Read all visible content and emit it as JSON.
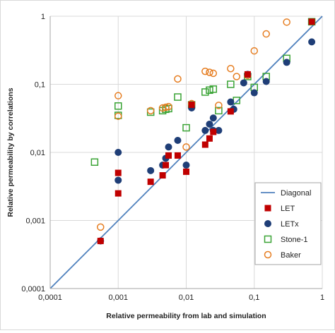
{
  "chart_data": {
    "type": "scatter",
    "title": "",
    "xlabel": "Relative permeability from lab and simulation",
    "ylabel": "Relative permeability by correlations",
    "xscale": "log",
    "yscale": "log",
    "xlim": [
      0.0001,
      1
    ],
    "ylim": [
      0.0001,
      1
    ],
    "x_tick_labels": [
      "0,0001",
      "0,001",
      "0,01",
      "0,1",
      "1"
    ],
    "y_tick_labels": [
      "0,0001",
      "0,001",
      "0,01",
      "0,1",
      "1"
    ],
    "grid": true,
    "legend_position": "bottom-right",
    "series": [
      {
        "name": "Diagonal",
        "marker": "line",
        "color": "#4f81bd",
        "points": [
          [
            0.0001,
            0.0001
          ],
          [
            1,
            1
          ]
        ]
      },
      {
        "name": "LET",
        "marker": "square-filled",
        "color": "#c00000",
        "points": [
          [
            0.00055,
            0.0005
          ],
          [
            0.001,
            0.005
          ],
          [
            0.001,
            0.0025
          ],
          [
            0.003,
            0.0037
          ],
          [
            0.0045,
            0.0046
          ],
          [
            0.005,
            0.0065
          ],
          [
            0.0055,
            0.009
          ],
          [
            0.0075,
            0.009
          ],
          [
            0.01,
            0.0052
          ],
          [
            0.012,
            0.05
          ],
          [
            0.019,
            0.013
          ],
          [
            0.022,
            0.016
          ],
          [
            0.025,
            0.02
          ],
          [
            0.045,
            0.04
          ],
          [
            0.08,
            0.14
          ],
          [
            0.7,
            0.83
          ]
        ]
      },
      {
        "name": "LETx",
        "marker": "circle-filled",
        "color": "#1f3e77",
        "points": [
          [
            0.00055,
            0.0005
          ],
          [
            0.001,
            0.01
          ],
          [
            0.001,
            0.0039
          ],
          [
            0.003,
            0.0054
          ],
          [
            0.0045,
            0.0065
          ],
          [
            0.005,
            0.0082
          ],
          [
            0.0055,
            0.012
          ],
          [
            0.0075,
            0.015
          ],
          [
            0.01,
            0.0065
          ],
          [
            0.012,
            0.045
          ],
          [
            0.019,
            0.021
          ],
          [
            0.022,
            0.026
          ],
          [
            0.025,
            0.032
          ],
          [
            0.025,
            0.021
          ],
          [
            0.03,
            0.021
          ],
          [
            0.045,
            0.055
          ],
          [
            0.05,
            0.043
          ],
          [
            0.07,
            0.105
          ],
          [
            0.08,
            0.14
          ],
          [
            0.1,
            0.075
          ],
          [
            0.15,
            0.11
          ],
          [
            0.3,
            0.21
          ],
          [
            0.7,
            0.42
          ]
        ]
      },
      {
        "name": "Stone-1",
        "marker": "square-open",
        "color": "#3aa335",
        "points": [
          [
            0.00045,
            0.0072
          ],
          [
            0.001,
            0.048
          ],
          [
            0.001,
            0.035
          ],
          [
            0.003,
            0.039
          ],
          [
            0.0045,
            0.041
          ],
          [
            0.005,
            0.043
          ],
          [
            0.0055,
            0.044
          ],
          [
            0.0075,
            0.065
          ],
          [
            0.01,
            0.023
          ],
          [
            0.012,
            0.05
          ],
          [
            0.019,
            0.077
          ],
          [
            0.022,
            0.082
          ],
          [
            0.025,
            0.085
          ],
          [
            0.03,
            0.041
          ],
          [
            0.045,
            0.1
          ],
          [
            0.055,
            0.058
          ],
          [
            0.08,
            0.13
          ],
          [
            0.1,
            0.09
          ],
          [
            0.15,
            0.13
          ],
          [
            0.3,
            0.24
          ],
          [
            0.7,
            0.83
          ]
        ]
      },
      {
        "name": "Baker",
        "marker": "circle-open",
        "color": "#e67e22",
        "points": [
          [
            0.00055,
            0.0008
          ],
          [
            0.001,
            0.068
          ],
          [
            0.001,
            0.034
          ],
          [
            0.003,
            0.041
          ],
          [
            0.0045,
            0.045
          ],
          [
            0.005,
            0.046
          ],
          [
            0.0055,
            0.047
          ],
          [
            0.0075,
            0.12
          ],
          [
            0.01,
            0.012
          ],
          [
            0.012,
            0.052
          ],
          [
            0.019,
            0.155
          ],
          [
            0.022,
            0.15
          ],
          [
            0.025,
            0.145
          ],
          [
            0.03,
            0.049
          ],
          [
            0.045,
            0.17
          ],
          [
            0.055,
            0.13
          ],
          [
            0.08,
            0.135
          ],
          [
            0.1,
            0.31
          ],
          [
            0.15,
            0.55
          ],
          [
            0.3,
            0.82
          ]
        ]
      }
    ]
  }
}
